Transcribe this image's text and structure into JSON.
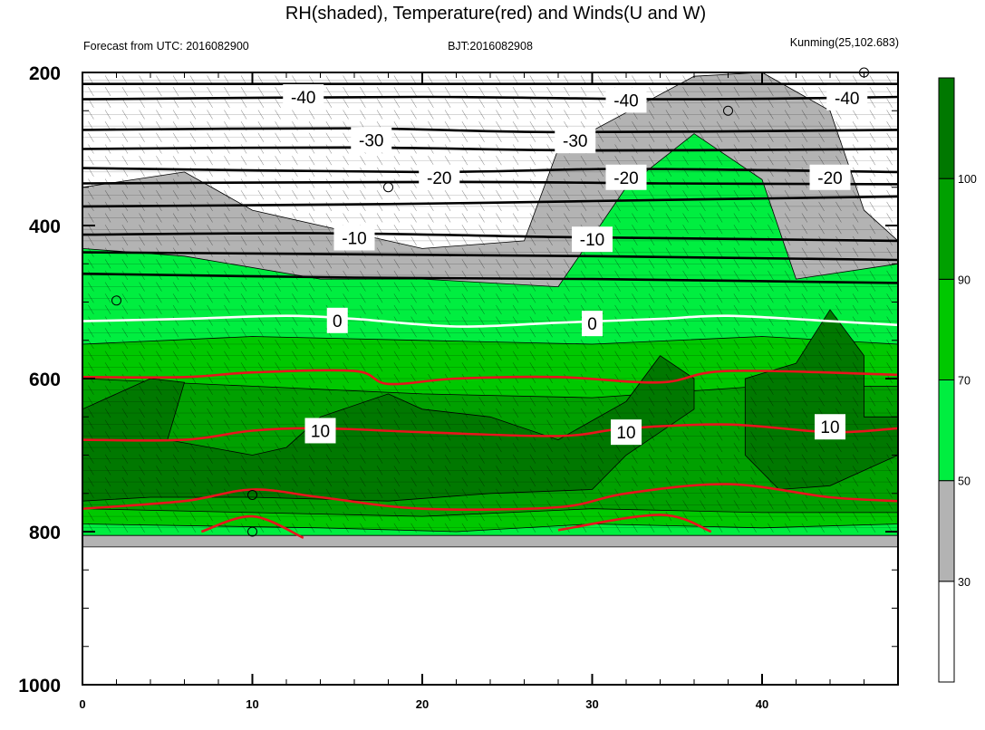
{
  "chart_data": {
    "type": "contour",
    "title": "RH(shaded), Temperature(red) and Winds(U and W)",
    "subtitle_left": "Forecast from UTC: 2016082900",
    "subtitle_center": "BJT:2016082908",
    "subtitle_right": "Kunming(25,102.683)",
    "xlim": [
      0,
      48
    ],
    "ylim": [
      1000,
      200
    ],
    "x_ticks": [
      "0",
      "10",
      "20",
      "30",
      "40"
    ],
    "y_ticks": [
      "200",
      "400",
      "600",
      "800",
      "1000"
    ],
    "colorbar": {
      "labels": [
        "30",
        "50",
        "70",
        "90",
        "100"
      ],
      "colors": [
        "#ffffff",
        "#b3b3b3",
        "#00ee40",
        "#00c800",
        "#00a000",
        "#007800"
      ]
    },
    "rh_bands": [
      {
        "name": "RH 30-50",
        "color": "#b3b3b3",
        "top": [
          [
            0,
            350
          ],
          [
            6,
            330
          ],
          [
            10,
            380
          ],
          [
            20,
            430
          ],
          [
            26,
            420
          ],
          [
            28,
            300
          ],
          [
            36,
            205
          ],
          [
            40,
            200
          ],
          [
            44,
            250
          ],
          [
            46,
            380
          ],
          [
            48,
            420
          ]
        ],
        "bottom": [
          [
            0,
            820
          ],
          [
            48,
            820
          ]
        ]
      },
      {
        "name": "RH 50-70",
        "color": "#00ee40",
        "top": [
          [
            0,
            430
          ],
          [
            6,
            440
          ],
          [
            14,
            470
          ],
          [
            20,
            470
          ],
          [
            28,
            480
          ],
          [
            32,
            350
          ],
          [
            36,
            280
          ],
          [
            40,
            340
          ],
          [
            42,
            470
          ],
          [
            48,
            450
          ]
        ],
        "bottom": [
          [
            0,
            805
          ],
          [
            48,
            805
          ]
        ]
      },
      {
        "name": "RH 70-90",
        "color": "#00c800",
        "top": [
          [
            0,
            555
          ],
          [
            10,
            545
          ],
          [
            20,
            550
          ],
          [
            30,
            555
          ],
          [
            40,
            545
          ],
          [
            48,
            555
          ]
        ],
        "bottom": [
          [
            0,
            790
          ],
          [
            14,
            795
          ],
          [
            22,
            800
          ],
          [
            30,
            790
          ],
          [
            40,
            795
          ],
          [
            48,
            790
          ]
        ]
      },
      {
        "name": "RH 90-100",
        "color": "#00a000",
        "top": [
          [
            0,
            600
          ],
          [
            10,
            610
          ],
          [
            20,
            620
          ],
          [
            30,
            625
          ],
          [
            40,
            610
          ],
          [
            48,
            610
          ]
        ],
        "bottom": [
          [
            0,
            770
          ],
          [
            10,
            775
          ],
          [
            20,
            780
          ],
          [
            30,
            770
          ],
          [
            40,
            775
          ],
          [
            48,
            775
          ]
        ]
      }
    ],
    "dark_patches": [
      {
        "name": "RH >100 left",
        "color": "#007800",
        "points": [
          [
            0,
            760
          ],
          [
            0,
            640
          ],
          [
            4,
            600
          ],
          [
            6,
            605
          ],
          [
            5,
            680
          ],
          [
            10,
            700
          ],
          [
            12,
            690
          ],
          [
            14,
            650
          ],
          [
            18,
            620
          ],
          [
            20,
            640
          ],
          [
            24,
            650
          ],
          [
            28,
            680
          ],
          [
            32,
            630
          ],
          [
            34,
            570
          ],
          [
            36,
            600
          ],
          [
            36,
            640
          ],
          [
            32,
            700
          ],
          [
            30,
            745
          ],
          [
            24,
            750
          ],
          [
            18,
            760
          ],
          [
            10,
            755
          ],
          [
            4,
            755
          ]
        ]
      },
      {
        "name": "RH >100 right",
        "color": "#007800",
        "points": [
          [
            39,
            600
          ],
          [
            42,
            580
          ],
          [
            44,
            510
          ],
          [
            46,
            570
          ],
          [
            46,
            650
          ],
          [
            48,
            650
          ],
          [
            48,
            700
          ],
          [
            44,
            740
          ],
          [
            41,
            745
          ],
          [
            39,
            700
          ]
        ]
      }
    ],
    "temperature_black": [
      {
        "label": "-40",
        "points": [
          [
            0,
            215
          ],
          [
            48,
            215
          ]
        ]
      },
      {
        "label": "-40",
        "points": [
          [
            0,
            235
          ],
          [
            20,
            232
          ],
          [
            35,
            235
          ],
          [
            48,
            232
          ]
        ]
      },
      {
        "label": "-30",
        "points": [
          [
            0,
            275
          ],
          [
            16,
            273
          ],
          [
            28,
            278
          ],
          [
            48,
            275
          ]
        ]
      },
      {
        "label": "-30",
        "points": [
          [
            0,
            300
          ],
          [
            16,
            298
          ],
          [
            30,
            302
          ],
          [
            48,
            300
          ]
        ]
      },
      {
        "label": "-20",
        "points": [
          [
            0,
            325
          ],
          [
            20,
            330
          ],
          [
            32,
            326
          ],
          [
            48,
            330
          ]
        ]
      },
      {
        "label": "-20",
        "points": [
          [
            0,
            345
          ],
          [
            22,
            343
          ],
          [
            34,
            345
          ],
          [
            48,
            346
          ]
        ]
      },
      {
        "label": "-10",
        "points": [
          [
            0,
            375
          ],
          [
            18,
            372
          ],
          [
            30,
            368
          ],
          [
            48,
            362
          ]
        ]
      },
      {
        "label": "-10",
        "points": [
          [
            0,
            412
          ],
          [
            14,
            410
          ],
          [
            28,
            415
          ],
          [
            40,
            418
          ],
          [
            48,
            420
          ]
        ]
      },
      {
        "label": "",
        "points": [
          [
            0,
            463
          ],
          [
            16,
            468
          ],
          [
            30,
            470
          ],
          [
            48,
            475
          ]
        ]
      },
      {
        "label": "",
        "points": [
          [
            0,
            435
          ],
          [
            30,
            440
          ],
          [
            48,
            445
          ]
        ]
      }
    ],
    "temperature_white": [
      {
        "label": "0",
        "points": [
          [
            0,
            525
          ],
          [
            6,
            522
          ],
          [
            12,
            518
          ],
          [
            16,
            522
          ],
          [
            22,
            532
          ],
          [
            28,
            527
          ],
          [
            34,
            522
          ],
          [
            38,
            518
          ],
          [
            44,
            525
          ],
          [
            48,
            530
          ]
        ]
      }
    ],
    "temperature_red": [
      {
        "label": "",
        "points": [
          [
            0,
            598
          ],
          [
            6,
            598
          ],
          [
            10,
            592
          ],
          [
            16,
            590
          ],
          [
            18,
            607
          ],
          [
            22,
            600
          ],
          [
            28,
            598
          ],
          [
            34,
            605
          ],
          [
            38,
            590
          ],
          [
            48,
            595
          ]
        ]
      },
      {
        "label": "10",
        "points": [
          [
            0,
            680
          ],
          [
            6,
            680
          ],
          [
            10,
            668
          ],
          [
            14,
            665
          ],
          [
            20,
            670
          ],
          [
            28,
            675
          ],
          [
            32,
            665
          ],
          [
            38,
            660
          ],
          [
            44,
            670
          ],
          [
            48,
            665
          ]
        ]
      },
      {
        "label": "",
        "points": [
          [
            0,
            770
          ],
          [
            6,
            760
          ],
          [
            10,
            745
          ],
          [
            14,
            755
          ],
          [
            20,
            770
          ],
          [
            28,
            768
          ],
          [
            32,
            750
          ],
          [
            38,
            738
          ],
          [
            44,
            755
          ],
          [
            48,
            760
          ]
        ]
      },
      {
        "label": "",
        "points": [
          [
            7,
            800
          ],
          [
            10,
            780
          ],
          [
            13,
            808
          ]
        ]
      },
      {
        "label": "",
        "points": [
          [
            28,
            798
          ],
          [
            34,
            778
          ],
          [
            37,
            800
          ]
        ]
      }
    ],
    "contour_labels": [
      {
        "text": "-40",
        "x": 13,
        "y": 232
      },
      {
        "text": "-40",
        "x": 32,
        "y": 236
      },
      {
        "text": "-40",
        "x": 45,
        "y": 233
      },
      {
        "text": "-30",
        "x": 17,
        "y": 288
      },
      {
        "text": "-30",
        "x": 29,
        "y": 289
      },
      {
        "text": "-20",
        "x": 21,
        "y": 337
      },
      {
        "text": "-20",
        "x": 32,
        "y": 337
      },
      {
        "text": "-20",
        "x": 44,
        "y": 337
      },
      {
        "text": "-10",
        "x": 16,
        "y": 416
      },
      {
        "text": "-10",
        "x": 30,
        "y": 418
      },
      {
        "text": "0",
        "x": 15,
        "y": 524
      },
      {
        "text": "0",
        "x": 30,
        "y": 528
      },
      {
        "text": "10",
        "x": 14,
        "y": 668
      },
      {
        "text": "10",
        "x": 32,
        "y": 670
      },
      {
        "text": "10",
        "x": 44,
        "y": 663
      }
    ],
    "calm_markers": [
      [
        2,
        498
      ],
      [
        10,
        752
      ],
      [
        10,
        800
      ],
      [
        18,
        350
      ],
      [
        38,
        250
      ],
      [
        46,
        200
      ]
    ]
  }
}
